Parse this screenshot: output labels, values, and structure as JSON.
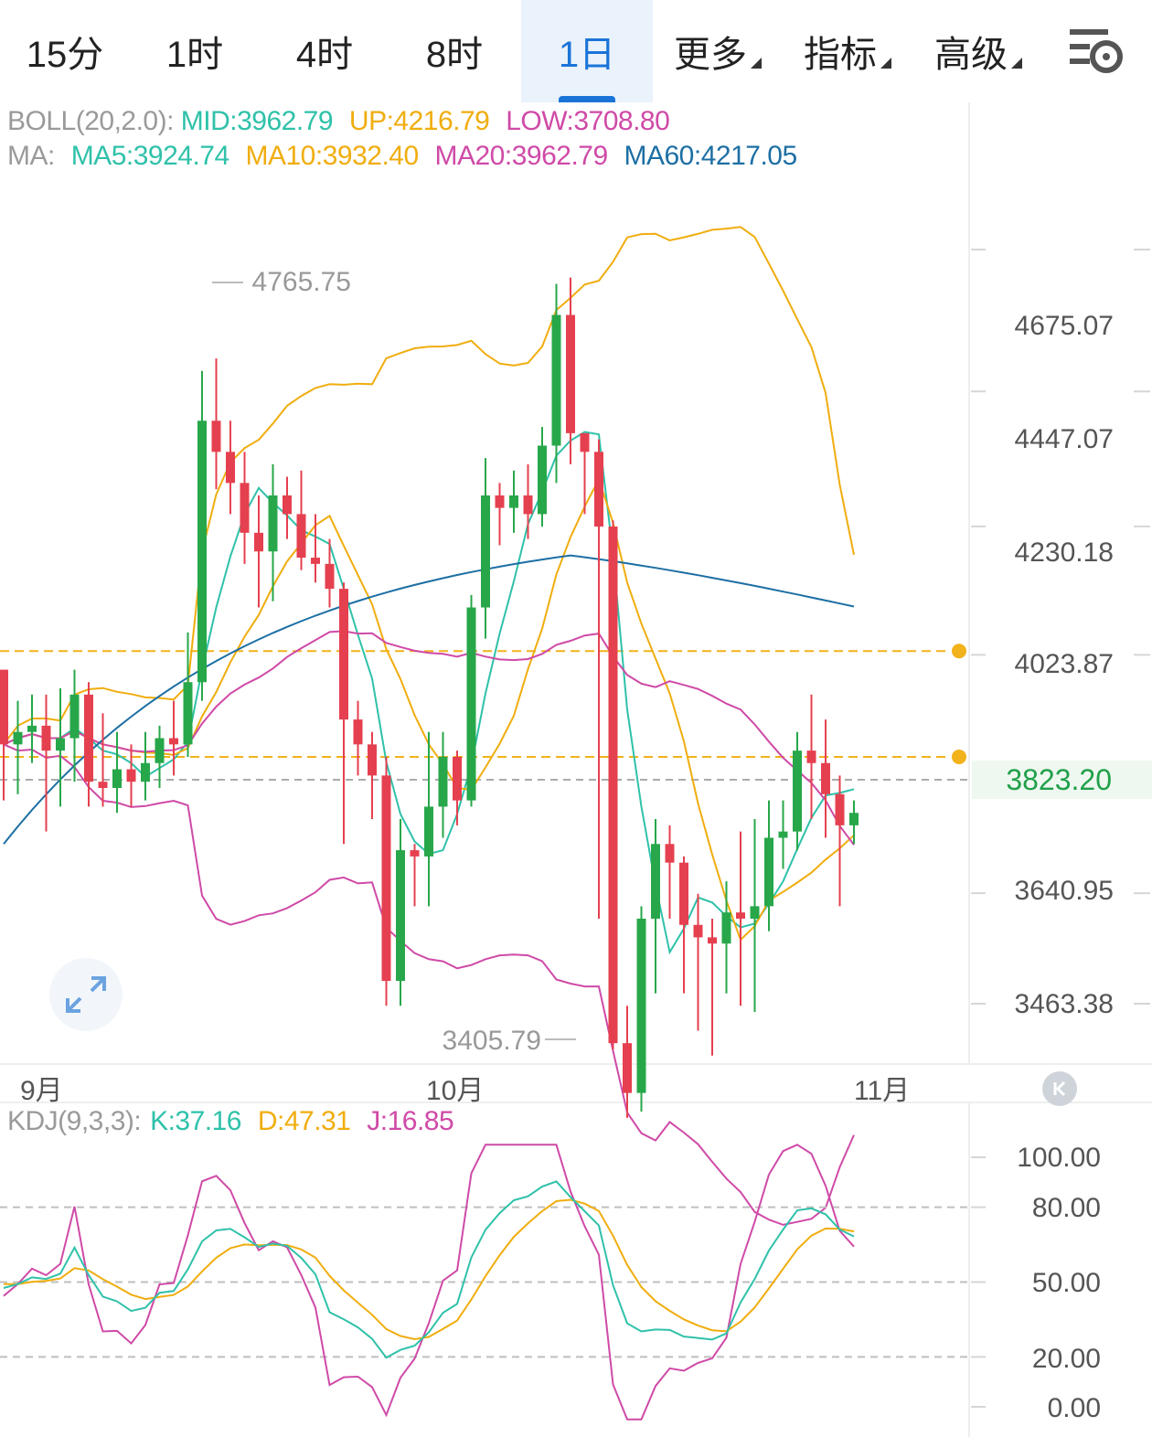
{
  "tabs": [
    {
      "label": "15分",
      "active": false
    },
    {
      "label": "1时",
      "active": false
    },
    {
      "label": "4时",
      "active": false
    },
    {
      "label": "8时",
      "active": false
    },
    {
      "label": "1日",
      "active": true
    },
    {
      "label": "更多",
      "active": false,
      "dropdown": true
    },
    {
      "label": "指标",
      "active": false,
      "dropdown": true
    },
    {
      "label": "高级",
      "active": false,
      "dropdown": true
    }
  ],
  "settings_icon": "chart-settings-icon",
  "boll_legend": {
    "name": "BOLL(20,2.0):",
    "mid": "MID:3962.79",
    "up": "UP:4216.79",
    "low": "LOW:3708.80"
  },
  "ma_legend": {
    "name": "MA:",
    "ma5": "MA5:3924.74",
    "ma10": "MA10:3932.40",
    "ma20": "MA20:3962.79",
    "ma60": "MA60:4217.05"
  },
  "kdj_legend": {
    "name": "KDJ(9,3,3):",
    "k": "K:37.16",
    "d": "D:47.31",
    "j": "J:16.85"
  },
  "colors": {
    "up": "#27a74a",
    "down": "#e5404f",
    "ma5": "#2fc1a9",
    "ma10": "#f0ad0f",
    "ma20": "#cf4aa7",
    "ma60": "#1d6fa4",
    "alert": "#f2b21b",
    "active_tab": "#1a74d8"
  },
  "price_axis": [
    "4675.07",
    "4447.07",
    "4230.18",
    "4023.87",
    "3640.95",
    "3463.38"
  ],
  "current_price": "3823.20",
  "high_marker": "4765.75",
  "low_marker": "3405.79",
  "alert_lines": [
    4030,
    3860
  ],
  "date_axis": [
    "9月",
    "10月",
    "11月"
  ],
  "kdj_axis": [
    "100.00",
    "80.00",
    "50.00",
    "20.00",
    "0.00"
  ],
  "chart_data": {
    "type": "candlestick",
    "price_range": [
      3380,
      4880
    ],
    "candles": [
      [
        4000,
        3880,
        4000,
        3790
      ],
      [
        3880,
        3900,
        3950,
        3800
      ],
      [
        3900,
        3910,
        3960,
        3850
      ],
      [
        3910,
        3870,
        3960,
        3740
      ],
      [
        3870,
        3890,
        3970,
        3780
      ],
      [
        3890,
        3960,
        4000,
        3820
      ],
      [
        3960,
        3820,
        3980,
        3780
      ],
      [
        3820,
        3810,
        3930,
        3780
      ],
      [
        3810,
        3840,
        3900,
        3770
      ],
      [
        3840,
        3820,
        3880,
        3780
      ],
      [
        3820,
        3850,
        3900,
        3790
      ],
      [
        3850,
        3890,
        3910,
        3810
      ],
      [
        3890,
        3880,
        3950,
        3830
      ],
      [
        3880,
        3980,
        4060,
        3860
      ],
      [
        3980,
        4400,
        4480,
        3950
      ],
      [
        4400,
        4350,
        4500,
        4290
      ],
      [
        4350,
        4300,
        4400,
        4250
      ],
      [
        4300,
        4220,
        4350,
        4170
      ],
      [
        4220,
        4190,
        4280,
        4100
      ],
      [
        4190,
        4280,
        4330,
        4110
      ],
      [
        4280,
        4250,
        4310,
        4210
      ],
      [
        4250,
        4180,
        4320,
        4160
      ],
      [
        4180,
        4170,
        4250,
        4140
      ],
      [
        4170,
        4130,
        4210,
        4100
      ],
      [
        4130,
        3920,
        4140,
        3720
      ],
      [
        3920,
        3880,
        3950,
        3830
      ],
      [
        3880,
        3830,
        3900,
        3760
      ],
      [
        3830,
        3500,
        3860,
        3460
      ],
      [
        3500,
        3710,
        3760,
        3460
      ],
      [
        3710,
        3700,
        3720,
        3620
      ],
      [
        3700,
        3780,
        3900,
        3620
      ],
      [
        3780,
        3860,
        3900,
        3730
      ],
      [
        3860,
        3790,
        3870,
        3750
      ],
      [
        3790,
        4100,
        4120,
        3780
      ],
      [
        4100,
        4280,
        4340,
        4050
      ],
      [
        4280,
        4260,
        4300,
        4200
      ],
      [
        4260,
        4280,
        4320,
        4220
      ],
      [
        4280,
        4250,
        4330,
        4210
      ],
      [
        4250,
        4360,
        4390,
        4230
      ],
      [
        4360,
        4570,
        4620,
        4300
      ],
      [
        4570,
        4380,
        4630,
        4330
      ],
      [
        4380,
        4350,
        4380,
        4250
      ],
      [
        4350,
        4230,
        4370,
        3600
      ],
      [
        4230,
        3400,
        4240,
        3390
      ],
      [
        3400,
        3320,
        3460,
        3280
      ],
      [
        3320,
        3600,
        3620,
        3290
      ],
      [
        3600,
        3720,
        3760,
        3480
      ],
      [
        3720,
        3690,
        3750,
        3600
      ],
      [
        3690,
        3590,
        3700,
        3480
      ],
      [
        3590,
        3570,
        3640,
        3420
      ],
      [
        3570,
        3560,
        3600,
        3380
      ],
      [
        3560,
        3610,
        3660,
        3480
      ],
      [
        3610,
        3600,
        3740,
        3460
      ],
      [
        3600,
        3620,
        3760,
        3450
      ],
      [
        3620,
        3730,
        3790,
        3580
      ],
      [
        3730,
        3740,
        3790,
        3680
      ],
      [
        3740,
        3870,
        3900,
        3710
      ],
      [
        3870,
        3850,
        3960,
        3760
      ],
      [
        3850,
        3800,
        3920,
        3730
      ],
      [
        3800,
        3750,
        3830,
        3620
      ],
      [
        3750,
        3770,
        3790,
        3720
      ]
    ],
    "boll": {
      "mid_value": 3962.79,
      "up_value": 4216.79,
      "low_value": 3708.8
    },
    "ma": {
      "MA5": 3924.74,
      "MA10": 3932.4,
      "MA20": 3962.79,
      "MA60": 4217.05
    },
    "kdj": {
      "K": 37.16,
      "D": 47.31,
      "J": 16.85,
      "range": [
        0,
        100
      ]
    }
  }
}
